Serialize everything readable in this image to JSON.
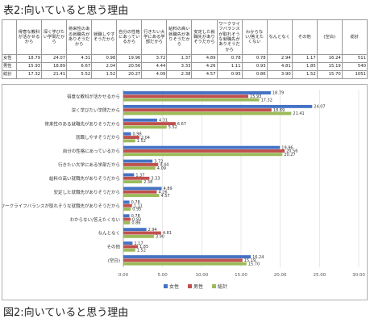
{
  "page_title": "表2:向いていると思う理由",
  "figure_caption": "図2:向いていると思う理由",
  "table": {
    "header_blank": "",
    "columns": [
      "得意な教科が活かせるから",
      "深く学びたい学問だから",
      "将来性のある就職先がありそうだから",
      "就職しやすそうだから",
      "自分の性格にあっているから",
      "行きたい大学にある学部だから",
      "給料の高い就職先がありそうだから",
      "安定した就職先がありそうだから",
      "ワークライフバランスが取れそうな就職先がありそうだから",
      "わからない/答えたくない",
      "なんとなく",
      "その他",
      "(空白)",
      "総計"
    ],
    "rows": [
      {
        "label": "女性",
        "values": [
          "18.79",
          "24.07",
          "4.31",
          "0.98",
          "19.96",
          "3.72",
          "1.37",
          "4.89",
          "0.78",
          "0.78",
          "2.94",
          "1.17",
          "16.24",
          "511"
        ]
      },
      {
        "label": "男性",
        "values": [
          "15.93",
          "18.89",
          "6.67",
          "2.04",
          "20.56",
          "4.44",
          "3.33",
          "4.26",
          "1.11",
          "0.93",
          "4.81",
          "1.85",
          "15.19",
          "540"
        ]
      },
      {
        "label": "総計",
        "values": [
          "17.32",
          "21.41",
          "5.52",
          "1.52",
          "20.27",
          "4.09",
          "2.38",
          "4.57",
          "0.95",
          "0.86",
          "3.90",
          "1.52",
          "15.70",
          "1051"
        ]
      }
    ]
  },
  "chart_data": {
    "type": "bar",
    "orientation": "horizontal",
    "categories": [
      "得意な教科が活かせるから",
      "深く学びたい学問だから",
      "将来性のある就職先がありそうだから",
      "就職しやすそうだから",
      "自分の性格にあっているから",
      "行きたい大学にある学部だから",
      "給料の高い就職先がありそうだから",
      "安定した就職先がありそうだから",
      "ワークライフバランスが取れそうな就職先がありそうだから",
      "わからない/答えたくない",
      "なんとなく",
      "その他",
      "(空白)"
    ],
    "series": [
      {
        "name": "女性",
        "color": "#4472c4",
        "values": [
          18.79,
          24.07,
          4.31,
          0.98,
          19.96,
          3.72,
          1.37,
          4.89,
          0.78,
          0.78,
          2.94,
          1.17,
          16.24
        ]
      },
      {
        "name": "男性",
        "color": "#c0504d",
        "values": [
          15.93,
          18.89,
          6.67,
          2.04,
          20.56,
          4.44,
          3.33,
          4.26,
          1.11,
          0.93,
          4.81,
          1.85,
          15.19
        ]
      },
      {
        "name": "総計",
        "color": "#9bbb59",
        "values": [
          17.32,
          21.41,
          5.52,
          1.52,
          20.27,
          4.09,
          2.38,
          4.57,
          0.95,
          0.86,
          3.9,
          1.52,
          15.7
        ]
      }
    ],
    "xlim": [
      0,
      30
    ],
    "xticks": [
      "0.00",
      "5.00",
      "10.00",
      "15.00",
      "20.00",
      "25.00",
      "30.00"
    ],
    "grid": true,
    "legend_position": "bottom"
  }
}
